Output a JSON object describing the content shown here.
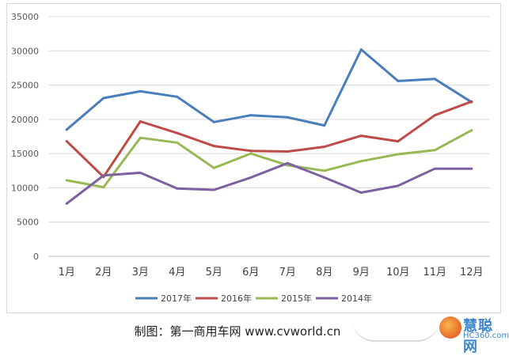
{
  "chart_data": {
    "type": "line",
    "categories": [
      "1月",
      "2月",
      "3月",
      "4月",
      "5月",
      "6月",
      "7月",
      "8月",
      "9月",
      "10月",
      "11月",
      "12月"
    ],
    "ylim": [
      0,
      35000
    ],
    "yticks": [
      0,
      5000,
      10000,
      15000,
      20000,
      25000,
      30000,
      35000
    ],
    "grid": true,
    "legend_position": "bottom",
    "series": [
      {
        "name": "2017年",
        "color": "#4a7ebb",
        "values": [
          18500,
          23100,
          24100,
          23300,
          19600,
          20600,
          20300,
          19100,
          30200,
          25600,
          25900,
          22500
        ]
      },
      {
        "name": "2016年",
        "color": "#be4b48",
        "values": [
          16800,
          11600,
          19700,
          18000,
          16100,
          15400,
          15300,
          16000,
          17600,
          16800,
          20600,
          22600
        ]
      },
      {
        "name": "2015年",
        "color": "#98b954",
        "values": [
          11100,
          10100,
          17300,
          16600,
          12900,
          15000,
          13300,
          12500,
          13900,
          14900,
          15500,
          18400
        ]
      },
      {
        "name": "2014年",
        "color": "#7d60a0",
        "values": [
          7700,
          11800,
          12200,
          9900,
          9700,
          11500,
          13600,
          11500,
          9300,
          10300,
          12800,
          12800
        ]
      }
    ]
  },
  "caption": "制图：第一商用车网 www.cvworld.cn",
  "watermark": {
    "brand": "慧聪网",
    "domain": "HC360.com"
  }
}
